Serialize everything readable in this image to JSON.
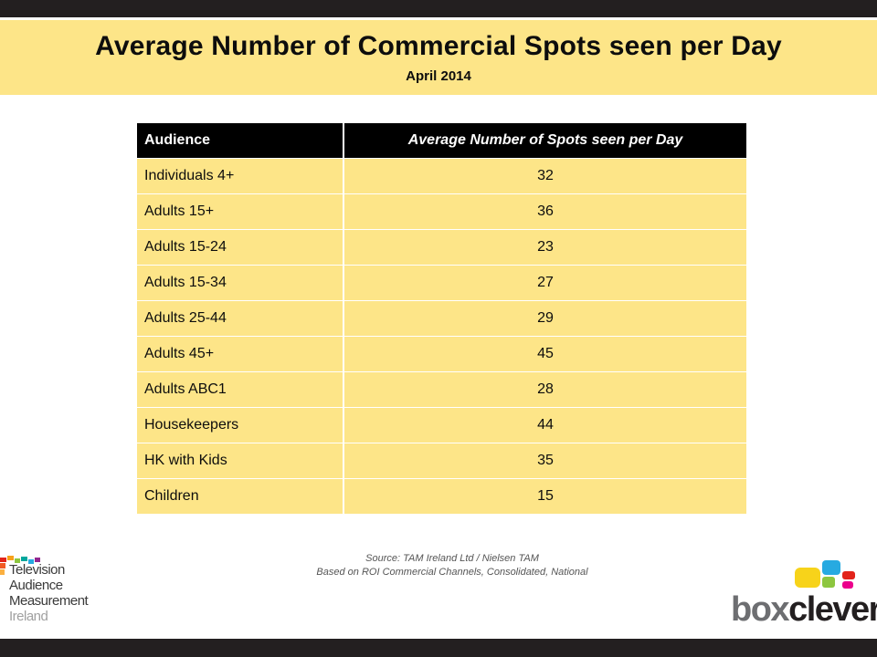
{
  "header": {
    "title": "Average Number of Commercial Spots seen per Day",
    "subtitle": "April 2014"
  },
  "table": {
    "columns": [
      "Audience",
      "Average Number of Spots seen per Day"
    ],
    "rows": [
      {
        "audience": "Individuals 4+",
        "value": "32"
      },
      {
        "audience": "Adults 15+",
        "value": "36"
      },
      {
        "audience": "Adults 15-24",
        "value": "23"
      },
      {
        "audience": "Adults 15-34",
        "value": "27"
      },
      {
        "audience": "Adults 25-44",
        "value": "29"
      },
      {
        "audience": "Adults 45+",
        "value": "45"
      },
      {
        "audience": "Adults ABC1",
        "value": "28"
      },
      {
        "audience": "Housekeepers",
        "value": "44"
      },
      {
        "audience": "HK with Kids",
        "value": "35"
      },
      {
        "audience": "Children",
        "value": "15"
      }
    ]
  },
  "footer": {
    "source_line1": "Source: TAM Ireland Ltd / Nielsen TAM",
    "source_line2": "Based on ROI Commercial Channels, Consolidated, National"
  },
  "logos": {
    "tam": {
      "line1": "Television",
      "line2": "Audience",
      "line3": "Measurement",
      "line4": "Ireland"
    },
    "boxclever": {
      "part1": "box",
      "part2": "clever"
    }
  },
  "colors": {
    "band": "#fde588",
    "header_bg": "#000000",
    "bar": "#231f20"
  }
}
